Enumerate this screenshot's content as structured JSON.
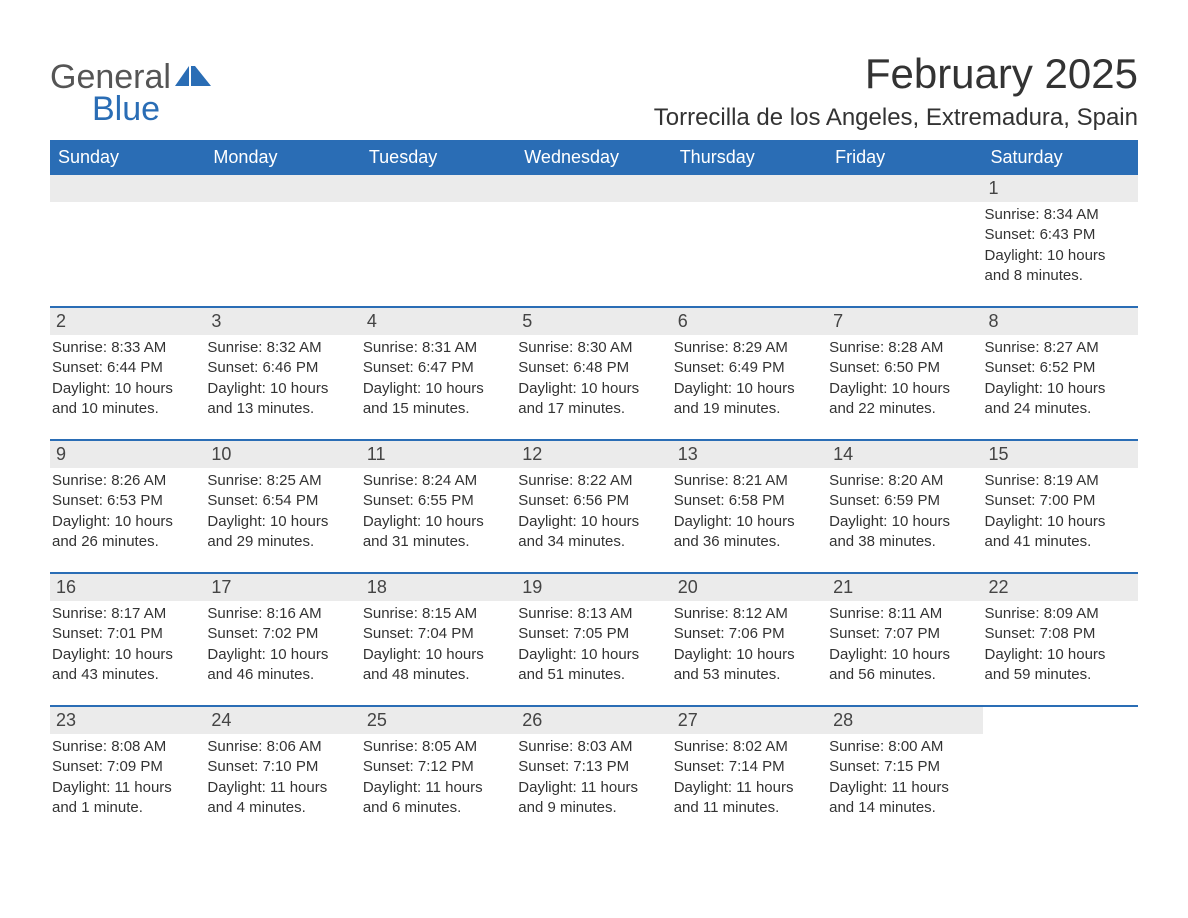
{
  "logo": {
    "part1": "General",
    "part2": "Blue"
  },
  "title": "February 2025",
  "location": "Torrecilla de los Angeles, Extremadura, Spain",
  "colors": {
    "accent": "#2a6db5",
    "header_row_bg": "#ebebeb",
    "text": "#333333",
    "background": "#ffffff"
  },
  "weekdays": [
    "Sunday",
    "Monday",
    "Tuesday",
    "Wednesday",
    "Thursday",
    "Friday",
    "Saturday"
  ],
  "weeks": [
    [
      null,
      null,
      null,
      null,
      null,
      null,
      {
        "n": "1",
        "sunrise": "Sunrise: 8:34 AM",
        "sunset": "Sunset: 6:43 PM",
        "d1": "Daylight: 10 hours",
        "d2": "and 8 minutes."
      }
    ],
    [
      {
        "n": "2",
        "sunrise": "Sunrise: 8:33 AM",
        "sunset": "Sunset: 6:44 PM",
        "d1": "Daylight: 10 hours",
        "d2": "and 10 minutes."
      },
      {
        "n": "3",
        "sunrise": "Sunrise: 8:32 AM",
        "sunset": "Sunset: 6:46 PM",
        "d1": "Daylight: 10 hours",
        "d2": "and 13 minutes."
      },
      {
        "n": "4",
        "sunrise": "Sunrise: 8:31 AM",
        "sunset": "Sunset: 6:47 PM",
        "d1": "Daylight: 10 hours",
        "d2": "and 15 minutes."
      },
      {
        "n": "5",
        "sunrise": "Sunrise: 8:30 AM",
        "sunset": "Sunset: 6:48 PM",
        "d1": "Daylight: 10 hours",
        "d2": "and 17 minutes."
      },
      {
        "n": "6",
        "sunrise": "Sunrise: 8:29 AM",
        "sunset": "Sunset: 6:49 PM",
        "d1": "Daylight: 10 hours",
        "d2": "and 19 minutes."
      },
      {
        "n": "7",
        "sunrise": "Sunrise: 8:28 AM",
        "sunset": "Sunset: 6:50 PM",
        "d1": "Daylight: 10 hours",
        "d2": "and 22 minutes."
      },
      {
        "n": "8",
        "sunrise": "Sunrise: 8:27 AM",
        "sunset": "Sunset: 6:52 PM",
        "d1": "Daylight: 10 hours",
        "d2": "and 24 minutes."
      }
    ],
    [
      {
        "n": "9",
        "sunrise": "Sunrise: 8:26 AM",
        "sunset": "Sunset: 6:53 PM",
        "d1": "Daylight: 10 hours",
        "d2": "and 26 minutes."
      },
      {
        "n": "10",
        "sunrise": "Sunrise: 8:25 AM",
        "sunset": "Sunset: 6:54 PM",
        "d1": "Daylight: 10 hours",
        "d2": "and 29 minutes."
      },
      {
        "n": "11",
        "sunrise": "Sunrise: 8:24 AM",
        "sunset": "Sunset: 6:55 PM",
        "d1": "Daylight: 10 hours",
        "d2": "and 31 minutes."
      },
      {
        "n": "12",
        "sunrise": "Sunrise: 8:22 AM",
        "sunset": "Sunset: 6:56 PM",
        "d1": "Daylight: 10 hours",
        "d2": "and 34 minutes."
      },
      {
        "n": "13",
        "sunrise": "Sunrise: 8:21 AM",
        "sunset": "Sunset: 6:58 PM",
        "d1": "Daylight: 10 hours",
        "d2": "and 36 minutes."
      },
      {
        "n": "14",
        "sunrise": "Sunrise: 8:20 AM",
        "sunset": "Sunset: 6:59 PM",
        "d1": "Daylight: 10 hours",
        "d2": "and 38 minutes."
      },
      {
        "n": "15",
        "sunrise": "Sunrise: 8:19 AM",
        "sunset": "Sunset: 7:00 PM",
        "d1": "Daylight: 10 hours",
        "d2": "and 41 minutes."
      }
    ],
    [
      {
        "n": "16",
        "sunrise": "Sunrise: 8:17 AM",
        "sunset": "Sunset: 7:01 PM",
        "d1": "Daylight: 10 hours",
        "d2": "and 43 minutes."
      },
      {
        "n": "17",
        "sunrise": "Sunrise: 8:16 AM",
        "sunset": "Sunset: 7:02 PM",
        "d1": "Daylight: 10 hours",
        "d2": "and 46 minutes."
      },
      {
        "n": "18",
        "sunrise": "Sunrise: 8:15 AM",
        "sunset": "Sunset: 7:04 PM",
        "d1": "Daylight: 10 hours",
        "d2": "and 48 minutes."
      },
      {
        "n": "19",
        "sunrise": "Sunrise: 8:13 AM",
        "sunset": "Sunset: 7:05 PM",
        "d1": "Daylight: 10 hours",
        "d2": "and 51 minutes."
      },
      {
        "n": "20",
        "sunrise": "Sunrise: 8:12 AM",
        "sunset": "Sunset: 7:06 PM",
        "d1": "Daylight: 10 hours",
        "d2": "and 53 minutes."
      },
      {
        "n": "21",
        "sunrise": "Sunrise: 8:11 AM",
        "sunset": "Sunset: 7:07 PM",
        "d1": "Daylight: 10 hours",
        "d2": "and 56 minutes."
      },
      {
        "n": "22",
        "sunrise": "Sunrise: 8:09 AM",
        "sunset": "Sunset: 7:08 PM",
        "d1": "Daylight: 10 hours",
        "d2": "and 59 minutes."
      }
    ],
    [
      {
        "n": "23",
        "sunrise": "Sunrise: 8:08 AM",
        "sunset": "Sunset: 7:09 PM",
        "d1": "Daylight: 11 hours",
        "d2": "and 1 minute."
      },
      {
        "n": "24",
        "sunrise": "Sunrise: 8:06 AM",
        "sunset": "Sunset: 7:10 PM",
        "d1": "Daylight: 11 hours",
        "d2": "and 4 minutes."
      },
      {
        "n": "25",
        "sunrise": "Sunrise: 8:05 AM",
        "sunset": "Sunset: 7:12 PM",
        "d1": "Daylight: 11 hours",
        "d2": "and 6 minutes."
      },
      {
        "n": "26",
        "sunrise": "Sunrise: 8:03 AM",
        "sunset": "Sunset: 7:13 PM",
        "d1": "Daylight: 11 hours",
        "d2": "and 9 minutes."
      },
      {
        "n": "27",
        "sunrise": "Sunrise: 8:02 AM",
        "sunset": "Sunset: 7:14 PM",
        "d1": "Daylight: 11 hours",
        "d2": "and 11 minutes."
      },
      {
        "n": "28",
        "sunrise": "Sunrise: 8:00 AM",
        "sunset": "Sunset: 7:15 PM",
        "d1": "Daylight: 11 hours",
        "d2": "and 14 minutes."
      },
      null
    ]
  ]
}
